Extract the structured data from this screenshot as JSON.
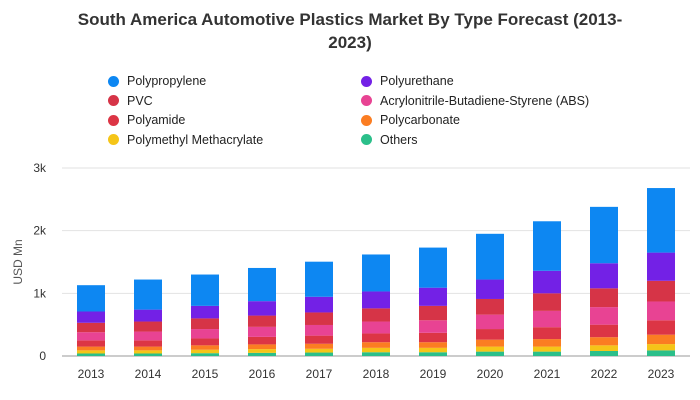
{
  "chart_data": {
    "type": "bar",
    "stacked": true,
    "title_line1": "South America Automotive Plastics Market By Type Forecast (2013-",
    "title_line2": "2023)",
    "ylabel": "USD Mn",
    "xlabel": "",
    "ylim": [
      0,
      3000
    ],
    "yticks": [
      {
        "value": 0,
        "label": "0"
      },
      {
        "value": 1000,
        "label": "1k"
      },
      {
        "value": 2000,
        "label": "2k"
      },
      {
        "value": 3000,
        "label": "3k"
      }
    ],
    "grid": true,
    "legend_position": "top",
    "categories": [
      "2013",
      "2014",
      "2015",
      "2016",
      "2017",
      "2018",
      "2019",
      "2020",
      "2021",
      "2022",
      "2023"
    ],
    "series": [
      {
        "name": "Others",
        "color": "#2bbf8a",
        "values": [
          40,
          40,
          45,
          50,
          55,
          60,
          60,
          70,
          70,
          80,
          90
        ]
      },
      {
        "name": "Polymethyl Methacrylate",
        "color": "#f5c518",
        "values": [
          50,
          50,
          55,
          60,
          60,
          70,
          70,
          80,
          80,
          90,
          100
        ]
      },
      {
        "name": "Polycarbonate",
        "color": "#fb7d22",
        "values": [
          60,
          60,
          70,
          75,
          80,
          90,
          90,
          110,
          120,
          130,
          150
        ]
      },
      {
        "name": "Polyamide",
        "color": "#dc3545",
        "values": [
          100,
          100,
          110,
          120,
          130,
          140,
          150,
          170,
          190,
          200,
          230
        ]
      },
      {
        "name": "Acrylonitrile-Butadiene-Styrene (ABS)",
        "color": "#e84393",
        "values": [
          130,
          140,
          150,
          160,
          170,
          190,
          200,
          230,
          260,
          280,
          300
        ]
      },
      {
        "name": "PVC",
        "color": "#d63447",
        "values": [
          150,
          160,
          170,
          180,
          200,
          210,
          230,
          250,
          280,
          300,
          330
        ]
      },
      {
        "name": "Polyurethane",
        "color": "#7321e6",
        "values": [
          180,
          190,
          200,
          230,
          250,
          270,
          290,
          310,
          360,
          400,
          450
        ]
      },
      {
        "name": "Polypropylene",
        "color": "#0d87f2",
        "values": [
          420,
          480,
          500,
          530,
          560,
          590,
          640,
          730,
          790,
          900,
          1030
        ]
      }
    ],
    "legend_order": [
      "Polypropylene",
      "Polyurethane",
      "PVC",
      "Acrylonitrile-Butadiene-Styrene (ABS)",
      "Polyamide",
      "Polycarbonate",
      "Polymethyl Methacrylate",
      "Others"
    ]
  }
}
